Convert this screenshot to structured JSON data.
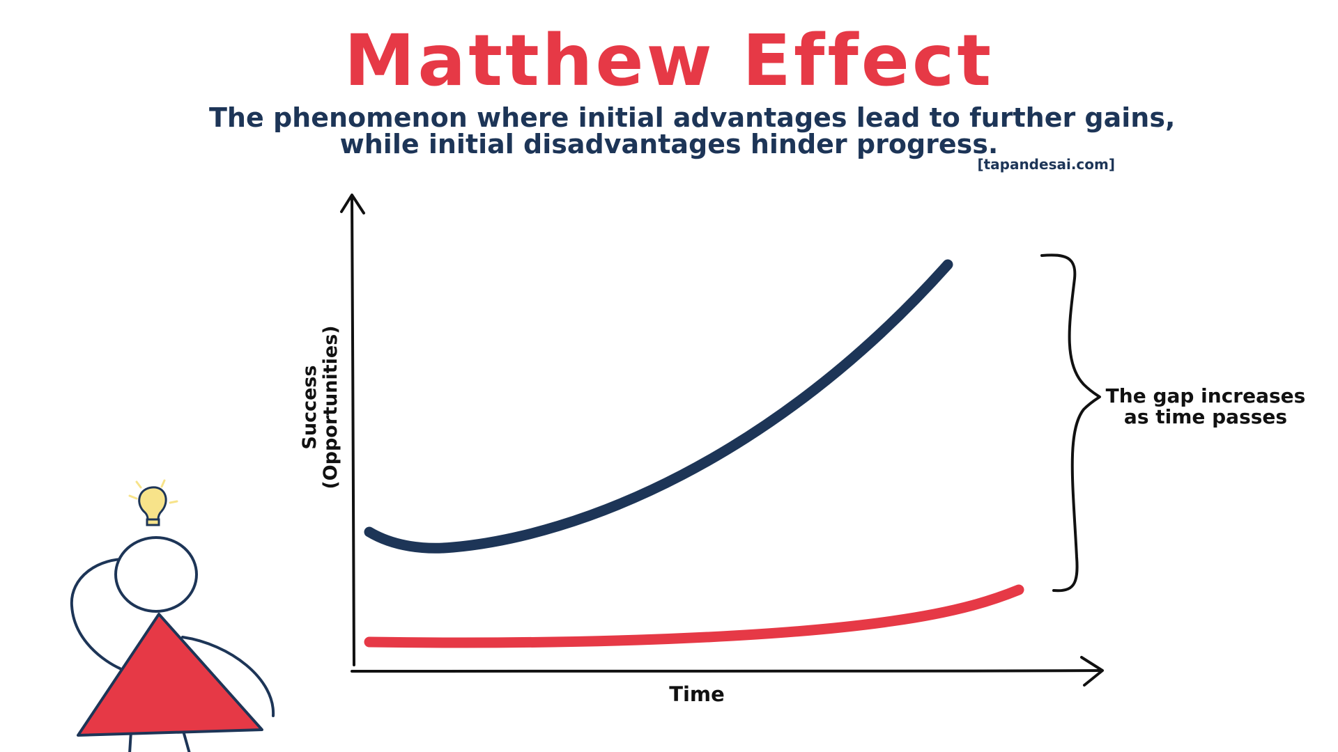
{
  "title": "Matthew Effect",
  "subtitle": {
    "line1": "The phenomenon where initial advantages lead to further gains,",
    "line2": "while initial disadvantages hinder progress."
  },
  "credit": "[tapandesai.com]",
  "axes": {
    "y_label_line1": "Success",
    "y_label_line2": "(Opportunities)",
    "x_label": "Time"
  },
  "annotation": {
    "line1": "The gap increases",
    "line2": "as time passes"
  },
  "colors": {
    "title": "#e63946",
    "subtitle": "#1d3557",
    "advantaged_curve": "#1d3557",
    "disadvantaged_curve": "#e63946",
    "axes": "#111111",
    "figure_body": "#e63946",
    "lightbulb": "#f7e38a"
  },
  "icons": [
    "lightbulb-icon",
    "thinking-person-figure",
    "curly-brace"
  ]
}
